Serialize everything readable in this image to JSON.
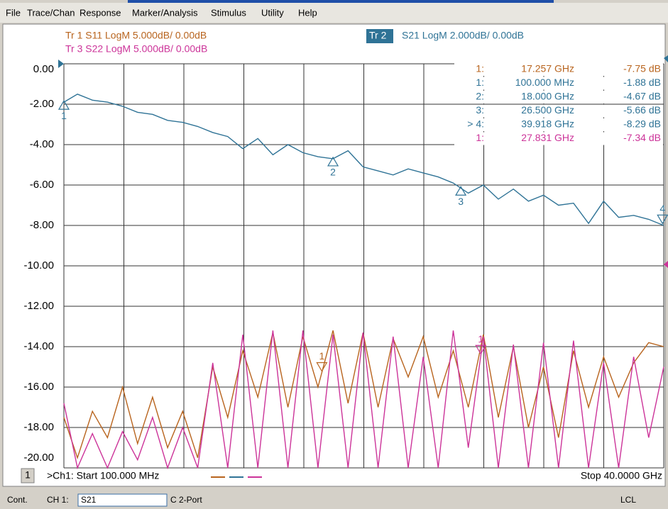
{
  "menu": [
    "File",
    "Trace/Chan",
    "Response",
    "Marker/Analysis",
    "Stimulus",
    "Utility",
    "Help"
  ],
  "traces": [
    {
      "text": "Tr 1  S11 LogM 5.000dB/  0.00dB",
      "color": "#b8641e"
    },
    {
      "text": "Tr 3  S22 LogM 5.000dB/  0.00dB",
      "color": "#cc3399"
    },
    {
      "tag": "Tr 2",
      "text": "S21 LogM 2.000dB/  0.00dB",
      "color": "#2f7396"
    }
  ],
  "marker_table": {
    "rows": [
      [
        "1:",
        "17.257 GHz",
        "-7.75 dB"
      ],
      [
        "1:",
        "100.000 MHz",
        "-1.88 dB"
      ],
      [
        "2:",
        "18.000 GHz",
        "-4.67 dB"
      ],
      [
        "3:",
        "26.500 GHz",
        "-5.66 dB"
      ],
      [
        "> 4:",
        "39.918 GHz",
        "-8.29 dB"
      ],
      [
        "1:",
        "27.831 GHz",
        "-7.34 dB"
      ]
    ],
    "colors": [
      "#b8641e",
      "#2f7396",
      "#2f7396",
      "#2f7396",
      "#2f7396",
      "#cc3399"
    ]
  },
  "chart_data": {
    "type": "line",
    "x": [
      0.1,
      1,
      2,
      3,
      4,
      5,
      6,
      7,
      8,
      9,
      10,
      11,
      12,
      13,
      14,
      15,
      16,
      17,
      18,
      19,
      20,
      21,
      22,
      23,
      24,
      25,
      26,
      27,
      28,
      29,
      30,
      31,
      32,
      33,
      34,
      35,
      36,
      37,
      38,
      39,
      40
    ],
    "xlim": [
      0.1,
      40
    ],
    "ylim": [
      -20,
      0
    ],
    "yticks": [
      {
        "value": 0,
        "label": "0.00"
      },
      {
        "value": -2,
        "label": "-2.00"
      },
      {
        "value": -4,
        "label": "-4.00"
      },
      {
        "value": -6,
        "label": "-6.00"
      },
      {
        "value": -8,
        "label": "-8.00"
      },
      {
        "value": -10,
        "label": "-10.00"
      },
      {
        "value": -12,
        "label": "-12.00"
      },
      {
        "value": -14,
        "label": "-14.00"
      },
      {
        "value": -16,
        "label": "-16.00"
      },
      {
        "value": -18,
        "label": "-18.00"
      },
      {
        "value": -20,
        "label": "-20.00"
      }
    ],
    "x_divisions": 10,
    "grid": true,
    "series": [
      {
        "color": "#b8641e",
        "values": [
          -17.5,
          -19.5,
          -17.2,
          -18.5,
          -16,
          -18.8,
          -16.5,
          -19,
          -17.2,
          -19.5,
          -15,
          -17.5,
          -14.2,
          -16.5,
          -13.3,
          -17,
          -13.5,
          -16,
          -13.2,
          -16.8,
          -13.3,
          -17,
          -13.6,
          -15.5,
          -13.5,
          -16.5,
          -14.2,
          -17,
          -13.4,
          -17.5,
          -14,
          -18,
          -15,
          -18.5,
          -14.2,
          -17,
          -14.5,
          -16.5,
          -14.8,
          -13.8,
          -14
        ]
      },
      {
        "color": "#2f7396",
        "values": [
          -1.9,
          -1.5,
          -1.8,
          -1.9,
          -2.1,
          -2.4,
          -2.5,
          -2.8,
          -2.9,
          -3.1,
          -3.4,
          -3.6,
          -4.2,
          -3.7,
          -4.5,
          -4.0,
          -4.4,
          -4.6,
          -4.7,
          -4.3,
          -5.1,
          -5.3,
          -5.5,
          -5.2,
          -5.4,
          -5.6,
          -5.9,
          -6.4,
          -6.0,
          -6.7,
          -6.2,
          -6.8,
          -6.5,
          -7.0,
          -6.9,
          -7.9,
          -6.8,
          -7.6,
          -7.5,
          -7.7,
          -8.0
        ]
      },
      {
        "color": "#cc3399",
        "values": [
          -16.8,
          -20,
          -18.3,
          -20,
          -18.2,
          -19.6,
          -17.5,
          -20,
          -18,
          -20,
          -14.8,
          -20,
          -13.4,
          -20,
          -13.2,
          -20,
          -13.2,
          -20,
          -13.4,
          -20,
          -13.3,
          -20,
          -13.5,
          -20,
          -14.5,
          -20,
          -13.2,
          -19,
          -13.5,
          -20,
          -13.9,
          -20,
          -13.8,
          -20,
          -13.7,
          -20,
          -14.8,
          -20,
          -14.5,
          -18.5,
          -15
        ]
      }
    ],
    "markers": [
      {
        "label": "1",
        "x": 0.1,
        "series": 1,
        "dir": "up"
      },
      {
        "label": "2",
        "x": 18,
        "series": 1,
        "dir": "up"
      },
      {
        "label": "3",
        "x": 26.5,
        "series": 1,
        "dir": "up"
      },
      {
        "label": "4",
        "x": 39.918,
        "series": 1,
        "dir": "down"
      },
      {
        "label": "1",
        "x": 17.257,
        "series": 0,
        "dir": "down"
      },
      {
        "label": "1",
        "x": 27.831,
        "series": 2,
        "dir": "down"
      }
    ]
  },
  "footer": {
    "channel": "1",
    "start": ">Ch1: Start 100.000 MHz",
    "stop": "Stop 40.0000 GHz"
  },
  "status": {
    "mode": "Cont.",
    "channel": "CH 1:",
    "param": "S21",
    "cal": "C 2-Port",
    "remote": "LCL"
  }
}
